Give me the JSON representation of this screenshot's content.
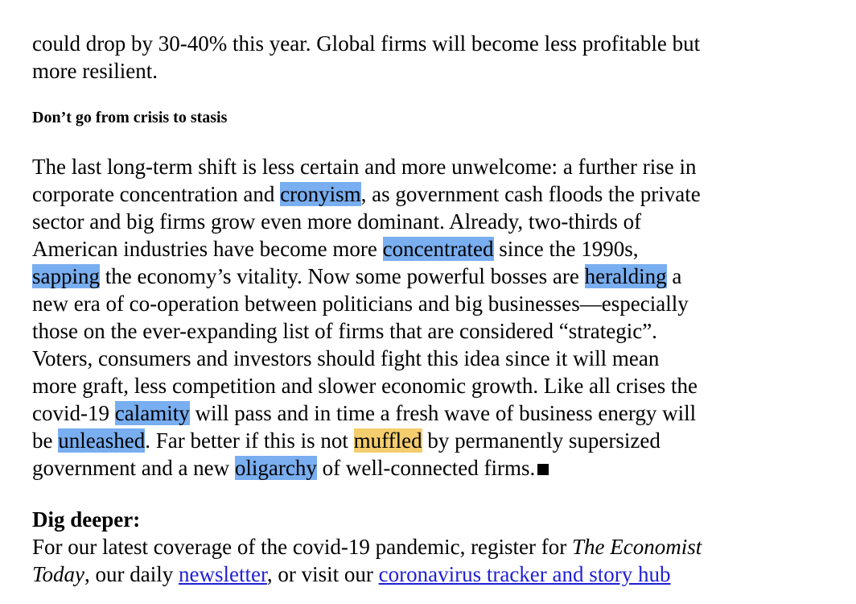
{
  "intro": {
    "lines": [
      "could drop by 30-40% this year. Global firms will become less profitable but",
      "more resilient."
    ]
  },
  "subheading": "Don’t go from crisis to stasis",
  "body": {
    "l1": "The last long-term shift is less certain and more unwelcome: a further rise in",
    "l2a": "corporate concentration and ",
    "l2h": "cronyism",
    "l2b": ", as government cash floods the private",
    "l3": "sector and big firms grow even more dominant. Already, two-thirds of",
    "l4a": "American industries have become more ",
    "l4h": "concentrated",
    "l4b": " since the 1990s,",
    "l5h": "sapping",
    "l5a": " the economy’s vitality. Now some powerful bosses are ",
    "l5h2": "heralding",
    "l5b": " a",
    "l6": "new era of co-operation between politicians and big businesses—especially",
    "l7": "those on the ever-expanding list of firms that are considered “strategic”.",
    "l8": "Voters, consumers and investors should fight this idea since it will mean",
    "l9": "more graft, less competition and slower economic growth. Like all crises the",
    "l10a": "covid-19 ",
    "l10h": "calamity",
    "l10b": " will pass and in time a fresh wave of business energy will",
    "l11a": "be ",
    "l11h": "unleashed",
    "l11b": ". Far better if this is not ",
    "l11h2": "muffled",
    "l11c": " by permanently supersized",
    "l12a": "government and a new ",
    "l12h": "oligarchy",
    "l12b": " of well-connected firms."
  },
  "dig_deeper": {
    "title": "Dig deeper:",
    "l1a": "For our latest coverage of the covid-19 pandemic, register for ",
    "l1i": "The Economist",
    "l2i": "Today",
    "l2a": ", our daily ",
    "link_newsletter": "newsletter",
    "l2b": ", or visit our ",
    "link_tracker": "coronavirus tracker and story hub"
  },
  "colors": {
    "highlight_blue": "#79aef0",
    "highlight_yellow": "#f4cd6e",
    "link": "#1f1fd6"
  }
}
